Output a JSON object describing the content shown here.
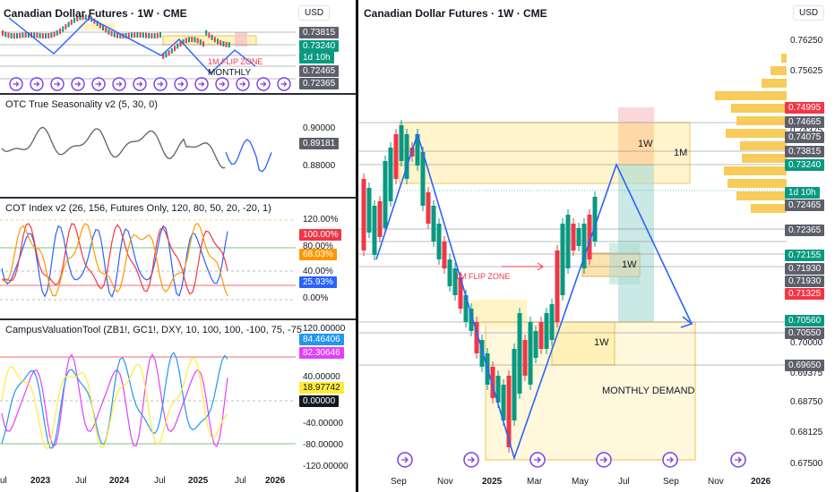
{
  "currency": "USD",
  "left_panel": {
    "price_pane": {
      "title": "Canadian Dollar Futures · 1W · CME",
      "labels": [
        "0.73815",
        "0.73240",
        "1d 10h",
        "0.72465",
        "0.72365"
      ],
      "annotations": [
        "1M FLIP ZONE",
        "MONTHLY"
      ]
    },
    "seasonality": {
      "title": "OTC True Seasonality v2 (5, 30, 0)",
      "ticks": [
        "0.90000",
        "0.88000"
      ],
      "current": "0.89181"
    },
    "cot": {
      "title": "COT Index v2 (26, 156, Futures Only, 120, 80, 50, 20, -20, 1)",
      "ticks": [
        "120.00%",
        "80.00%",
        "40.00%",
        "0.00%"
      ],
      "tags": [
        "100.00%",
        "68.03%",
        "25.93%"
      ]
    },
    "campus": {
      "title": "CampusValuationTool (ZB1!, GC1!, DXY, 10, 100, 100, -100, 75, -75",
      "ticks": [
        "120.00000",
        "40.00000",
        "-40.00000",
        "-80.00000",
        "-120.00000"
      ],
      "tags": [
        "84.46406",
        "82.30646",
        "18.97742",
        "0.00000"
      ]
    },
    "x_ticks": [
      "ul",
      "2023",
      "Jul",
      "2024",
      "Jul",
      "2025",
      "Jul",
      "2026"
    ]
  },
  "right_panel": {
    "title": "Canadian Dollar Futures · 1W · CME",
    "y_ticks": [
      "0.76250",
      "0.75625",
      "0.74375",
      "0.70000",
      "0.69375",
      "0.68750",
      "0.68125",
      "0.67500"
    ],
    "price_tags": [
      {
        "value": "0.74995",
        "color": "#f23645"
      },
      {
        "value": "0.74665",
        "color": "#5d606b"
      },
      {
        "value": "0.74075",
        "color": "#5d606b"
      },
      {
        "value": "0.73815",
        "color": "#5d606b"
      },
      {
        "value": "0.73240",
        "color": "#089981"
      },
      {
        "value": "1d 10h",
        "color": "#089981"
      },
      {
        "value": "0.72465",
        "color": "#5d606b"
      },
      {
        "value": "0.72365",
        "color": "#5d606b"
      },
      {
        "value": "0.72155",
        "color": "#089981"
      },
      {
        "value": "0.71930",
        "color": "#5d606b"
      },
      {
        "value": "0.71930",
        "color": "#5d606b"
      },
      {
        "value": "0.71325",
        "color": "#f23645"
      },
      {
        "value": "0.70560",
        "color": "#089981"
      },
      {
        "value": "0.70550",
        "color": "#5d606b"
      },
      {
        "value": "0.69650",
        "color": "#5d606b"
      }
    ],
    "zones": [
      "1W",
      "1M",
      "1W",
      "1W",
      "MONTHLY DEMAND"
    ],
    "flip_zone": "1M FLIP ZONE",
    "x_ticks": [
      "Sep",
      "Nov",
      "2025",
      "Mar",
      "May",
      "Jul",
      "Sep",
      "Nov",
      "2026"
    ]
  },
  "chart_data": {
    "type": "candlestick",
    "title": "Canadian Dollar Futures · 1W · CME",
    "ylim": [
      0.675,
      0.765
    ],
    "x_ticks": [
      "Sep",
      "Nov",
      "2025",
      "Mar",
      "May",
      "Jul",
      "Sep",
      "Nov",
      "2026"
    ]
  }
}
